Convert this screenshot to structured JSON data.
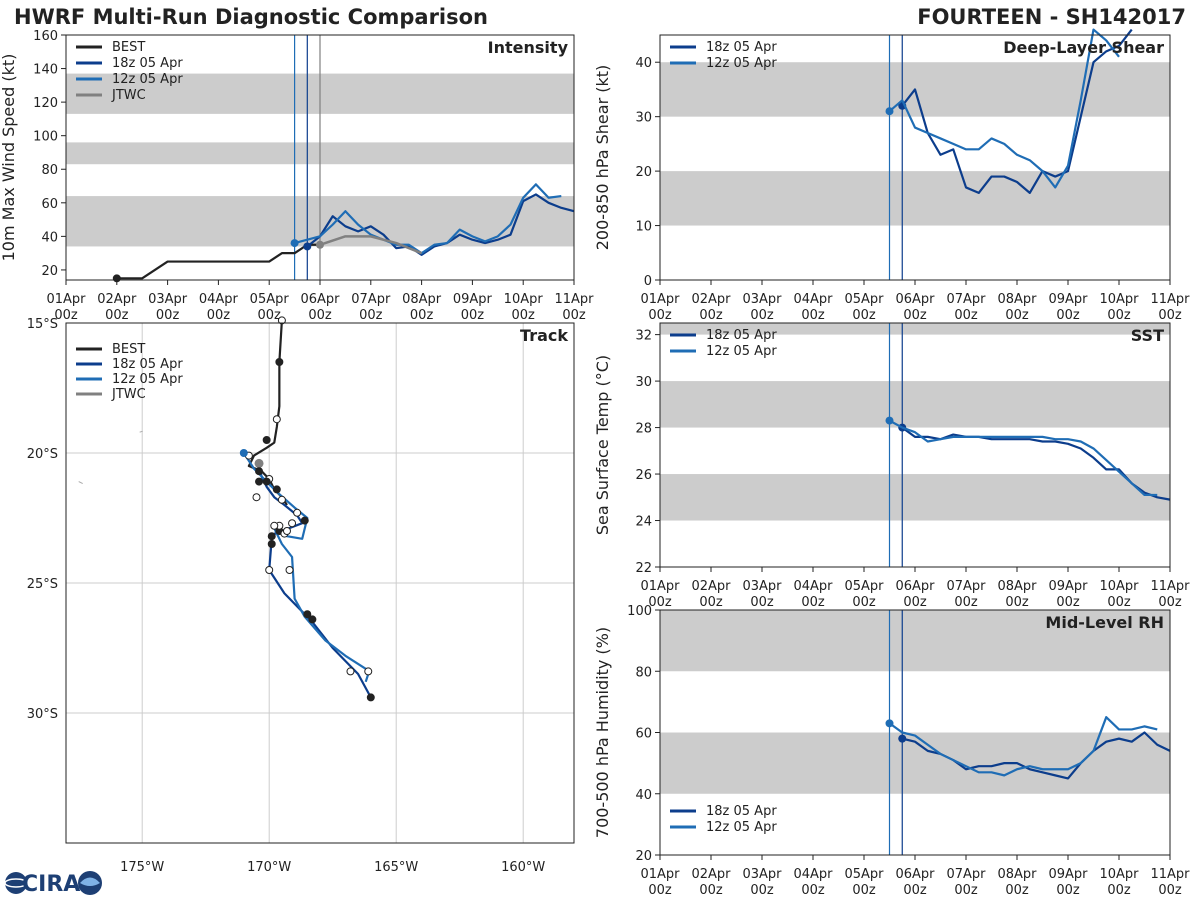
{
  "header": {
    "left_title": "HWRF Multi-Run Diagnostic Comparison",
    "right_title": "FOURTEEN - SH142017"
  },
  "logo": {
    "text": "CIRA",
    "icon": "cira-logo-icon"
  },
  "colors": {
    "best": "#222222",
    "run18": "#0c3d8c",
    "run12": "#1f6db5",
    "jtwc": "#808080",
    "band": "#cccccc",
    "grid": "#cccccc"
  },
  "chart_data": [
    {
      "id": "intensity",
      "type": "line",
      "title": "Intensity",
      "ylabel": "10m Max Wind Speed (kt)",
      "xlim": [
        0,
        10
      ],
      "ylim": [
        14,
        160
      ],
      "xticks": [
        {
          "v": 0,
          "l1": "01Apr",
          "l2": "00z"
        },
        {
          "v": 1,
          "l1": "02Apr",
          "l2": "00z"
        },
        {
          "v": 2,
          "l1": "03Apr",
          "l2": "00z"
        },
        {
          "v": 3,
          "l1": "04Apr",
          "l2": "00z"
        },
        {
          "v": 4,
          "l1": "05Apr",
          "l2": "00z"
        },
        {
          "v": 5,
          "l1": "06Apr",
          "l2": "00z"
        },
        {
          "v": 6,
          "l1": "07Apr",
          "l2": "00z"
        },
        {
          "v": 7,
          "l1": "08Apr",
          "l2": "00z"
        },
        {
          "v": 8,
          "l1": "09Apr",
          "l2": "00z"
        },
        {
          "v": 9,
          "l1": "10Apr",
          "l2": "00z"
        },
        {
          "v": 10,
          "l1": "11Apr",
          "l2": "00z"
        }
      ],
      "yticks": [
        20,
        40,
        60,
        80,
        100,
        120,
        140,
        160
      ],
      "bands": [
        [
          34,
          64
        ],
        [
          83,
          96
        ],
        [
          113,
          137
        ]
      ],
      "vlines": [
        {
          "x": 4.5,
          "series": "run12"
        },
        {
          "x": 4.75,
          "series": "run18"
        },
        {
          "x": 5.0,
          "series": "jtwc"
        }
      ],
      "legend": [
        {
          "label": "BEST",
          "series": "best"
        },
        {
          "label": "18z 05 Apr",
          "series": "run18"
        },
        {
          "label": "12z 05 Apr",
          "series": "run12"
        },
        {
          "label": "JTWC",
          "series": "jtwc"
        }
      ],
      "series": [
        {
          "name": "BEST",
          "key": "best",
          "x": [
            1,
            1.25,
            1.5,
            1.75,
            2,
            2.25,
            2.5,
            2.75,
            3,
            3.25,
            3.5,
            3.75,
            4,
            4.25,
            4.5,
            4.75,
            5
          ],
          "y": [
            15,
            15,
            15,
            20,
            25,
            25,
            25,
            25,
            25,
            25,
            25,
            25,
            25,
            30,
            30,
            35,
            35
          ]
        },
        {
          "name": "18z 05 Apr",
          "key": "run18",
          "x": [
            4.75,
            5,
            5.25,
            5.5,
            5.75,
            6,
            6.25,
            6.5,
            6.75,
            7,
            7.25,
            7.5,
            7.75,
            8,
            8.25,
            8.5,
            8.75,
            9,
            9.25,
            9.5,
            9.75,
            10
          ],
          "y": [
            34,
            40,
            52,
            46,
            43,
            46,
            41,
            33,
            34,
            29,
            34,
            36,
            41,
            38,
            36,
            38,
            41,
            61,
            65,
            60,
            57,
            55
          ]
        },
        {
          "name": "12z 05 Apr",
          "key": "run12",
          "x": [
            4.5,
            4.75,
            5,
            5.25,
            5.5,
            5.75,
            6,
            6.25,
            6.5,
            6.75,
            7,
            7.25,
            7.5,
            7.75,
            8,
            8.25,
            8.5,
            8.75,
            9,
            9.25,
            9.5,
            9.75
          ],
          "y": [
            36,
            38,
            40,
            47,
            55,
            47,
            41,
            38,
            35,
            35,
            30,
            35,
            36,
            44,
            40,
            37,
            40,
            47,
            63,
            71,
            63,
            64
          ]
        },
        {
          "name": "JTWC",
          "key": "jtwc",
          "x": [
            5,
            5.5,
            6,
            6.5,
            7
          ],
          "y": [
            35,
            40,
            40,
            36,
            30
          ]
        }
      ]
    },
    {
      "id": "shear",
      "type": "line",
      "title": "Deep-Layer Shear",
      "ylabel": "200-850 hPa Shear (kt)",
      "xlim": [
        0,
        10
      ],
      "ylim": [
        0,
        45
      ],
      "yticks": [
        0,
        10,
        20,
        30,
        40
      ],
      "bands": [
        [
          10,
          20
        ],
        [
          30,
          40
        ]
      ],
      "vlines": [
        {
          "x": 4.5,
          "series": "run12"
        },
        {
          "x": 4.75,
          "series": "run18"
        }
      ],
      "legend": [
        {
          "label": "18z 05 Apr",
          "series": "run18"
        },
        {
          "label": "12z 05 Apr",
          "series": "run12"
        }
      ],
      "series": [
        {
          "name": "18z 05 Apr",
          "key": "run18",
          "x": [
            4.75,
            5,
            5.25,
            5.5,
            5.75,
            6,
            6.25,
            6.5,
            6.75,
            7,
            7.25,
            7.5,
            7.75,
            8,
            8.25,
            8.5,
            8.75,
            9,
            9.25
          ],
          "y": [
            32,
            35,
            27,
            23,
            24,
            17,
            16,
            19,
            19,
            18,
            16,
            20,
            19,
            20,
            30,
            40,
            42,
            43,
            46
          ]
        },
        {
          "name": "12z 05 Apr",
          "key": "run12",
          "x": [
            4.5,
            4.75,
            5,
            5.25,
            5.5,
            5.75,
            6,
            6.25,
            6.5,
            6.75,
            7,
            7.25,
            7.5,
            7.75,
            8,
            8.25,
            8.5,
            8.75,
            9
          ],
          "y": [
            31,
            33,
            28,
            27,
            26,
            25,
            24,
            24,
            26,
            25,
            23,
            22,
            20,
            17,
            21,
            33,
            46,
            44,
            41
          ]
        }
      ]
    },
    {
      "id": "sst",
      "type": "line",
      "title": "SST",
      "ylabel": "Sea Surface Temp (°C)",
      "xlim": [
        0,
        10
      ],
      "ylim": [
        22,
        32.5
      ],
      "yticks": [
        22,
        24,
        26,
        28,
        30,
        32
      ],
      "bands": [
        [
          24,
          26
        ],
        [
          28,
          30
        ],
        [
          32,
          32.5
        ]
      ],
      "vlines": [
        {
          "x": 4.5,
          "series": "run12"
        },
        {
          "x": 4.75,
          "series": "run18"
        }
      ],
      "legend": [
        {
          "label": "18z 05 Apr",
          "series": "run18"
        },
        {
          "label": "12z 05 Apr",
          "series": "run12"
        }
      ],
      "series": [
        {
          "name": "18z 05 Apr",
          "key": "run18",
          "x": [
            4.75,
            5,
            5.25,
            5.5,
            5.75,
            6,
            6.25,
            6.5,
            6.75,
            7,
            7.25,
            7.5,
            7.75,
            8,
            8.25,
            8.5,
            8.75,
            9,
            9.25,
            9.5,
            9.75,
            10
          ],
          "y": [
            28.0,
            27.6,
            27.6,
            27.5,
            27.7,
            27.6,
            27.6,
            27.5,
            27.5,
            27.5,
            27.5,
            27.4,
            27.4,
            27.3,
            27.1,
            26.7,
            26.2,
            26.2,
            25.6,
            25.2,
            25.0,
            24.9
          ]
        },
        {
          "name": "12z 05 Apr",
          "key": "run12",
          "x": [
            4.5,
            4.75,
            5,
            5.25,
            5.5,
            5.75,
            6,
            6.25,
            6.5,
            6.75,
            7,
            7.25,
            7.5,
            7.75,
            8,
            8.25,
            8.5,
            8.75,
            9,
            9.25,
            9.5,
            9.75
          ],
          "y": [
            28.3,
            28.0,
            27.8,
            27.4,
            27.5,
            27.6,
            27.6,
            27.6,
            27.6,
            27.6,
            27.6,
            27.6,
            27.6,
            27.5,
            27.5,
            27.4,
            27.1,
            26.6,
            26.1,
            25.6,
            25.1,
            25.1
          ]
        }
      ]
    },
    {
      "id": "rh",
      "type": "line",
      "title": "Mid-Level RH",
      "ylabel": "700-500 hPa Humidity (%)",
      "xlim": [
        0,
        10
      ],
      "ylim": [
        20,
        100
      ],
      "yticks": [
        20,
        40,
        60,
        80,
        100
      ],
      "bands": [
        [
          40,
          60
        ],
        [
          80,
          100
        ]
      ],
      "vlines": [
        {
          "x": 4.5,
          "series": "run12"
        },
        {
          "x": 4.75,
          "series": "run18"
        }
      ],
      "legend": [
        {
          "label": "18z 05 Apr",
          "series": "run18"
        },
        {
          "label": "12z 05 Apr",
          "series": "run12"
        }
      ],
      "series": [
        {
          "name": "18z 05 Apr",
          "key": "run18",
          "x": [
            4.75,
            5,
            5.25,
            5.5,
            5.75,
            6,
            6.25,
            6.5,
            6.75,
            7,
            7.25,
            7.5,
            7.75,
            8,
            8.25,
            8.5,
            8.75,
            9,
            9.25,
            9.5,
            9.75,
            10
          ],
          "y": [
            58,
            57,
            54,
            53,
            51,
            48,
            49,
            49,
            50,
            50,
            48,
            47,
            46,
            45,
            50,
            54,
            57,
            58,
            57,
            60,
            56,
            54
          ]
        },
        {
          "name": "12z 05 Apr",
          "key": "run12",
          "x": [
            4.5,
            4.75,
            5,
            5.25,
            5.5,
            5.75,
            6,
            6.25,
            6.5,
            6.75,
            7,
            7.25,
            7.5,
            7.75,
            8,
            8.25,
            8.5,
            8.75,
            9,
            9.25,
            9.5,
            9.75
          ],
          "y": [
            63,
            60,
            59,
            56,
            53,
            51,
            49,
            47,
            47,
            46,
            48,
            49,
            48,
            48,
            48,
            50,
            54,
            65,
            61,
            61,
            62,
            61
          ]
        }
      ]
    },
    {
      "id": "track",
      "type": "scatter",
      "title": "Track",
      "xlim": [
        -178,
        -158
      ],
      "ylim": [
        -35,
        -15
      ],
      "xticks": [
        {
          "v": -175,
          "l": "175°W"
        },
        {
          "v": -170,
          "l": "170°W"
        },
        {
          "v": -165,
          "l": "165°W"
        },
        {
          "v": -160,
          "l": "160°W"
        }
      ],
      "yticks": [
        {
          "v": -15,
          "l": "15°S"
        },
        {
          "v": -20,
          "l": "20°S"
        },
        {
          "v": -25,
          "l": "25°S"
        },
        {
          "v": -30,
          "l": "30°S"
        }
      ],
      "legend": [
        {
          "label": "BEST",
          "series": "best"
        },
        {
          "label": "18z 05 Apr",
          "series": "run18"
        },
        {
          "label": "12z 05 Apr",
          "series": "run12"
        },
        {
          "label": "JTWC",
          "series": "jtwc"
        }
      ],
      "series": [
        {
          "name": "BEST",
          "key": "best",
          "lon": [
            -169.5,
            -169.6,
            -169.6,
            -169.7,
            -169.8,
            -170.1,
            -170.6,
            -170.8,
            -170.3,
            -170.0,
            -169.8,
            -169.5,
            -169.3
          ],
          "lat": [
            -14.9,
            -16.5,
            -18.2,
            -19.0,
            -19.6,
            -19.8,
            -20.1,
            -20.5,
            -20.7,
            -21.0,
            -21.4,
            -21.7,
            -22.0
          ]
        },
        {
          "name": "18z 05 Apr",
          "key": "run18",
          "lon": [
            -170.4,
            -170.3,
            -170.1,
            -169.8,
            -169.4,
            -168.9,
            -168.7,
            -169.5,
            -169.3,
            -169.7,
            -169.9,
            -170.0,
            -169.4,
            -168.6,
            -168.3,
            -167.5,
            -166.5,
            -166.0
          ],
          "lat": [
            -20.5,
            -20.9,
            -21.3,
            -21.7,
            -22.0,
            -22.4,
            -22.7,
            -23.0,
            -23.1,
            -23.0,
            -23.3,
            -24.5,
            -25.4,
            -26.2,
            -26.5,
            -27.5,
            -28.5,
            -29.4
          ]
        },
        {
          "name": "12z 05 Apr",
          "key": "run12",
          "lon": [
            -171.0,
            -170.6,
            -170.2,
            -169.7,
            -169.0,
            -168.5,
            -168.7,
            -169.3,
            -169.8,
            -169.5,
            -169.1,
            -169.0,
            -168.6,
            -167.8,
            -167.0,
            -166.2,
            -166.1,
            -166.2
          ],
          "lat": [
            -20.0,
            -20.6,
            -21.0,
            -21.5,
            -22.1,
            -22.5,
            -23.3,
            -23.2,
            -22.9,
            -23.5,
            -24.0,
            -25.6,
            -26.3,
            -27.2,
            -27.8,
            -28.3,
            -28.5,
            -28.8
          ]
        },
        {
          "name": "JTWC",
          "key": "jtwc",
          "lon": [
            -170.5,
            -170.3
          ],
          "lat": [
            -20.4,
            -20.4
          ]
        }
      ],
      "markers": {
        "best": [
          [
            -169.5,
            -14.9
          ],
          [
            -169.6,
            -16.5
          ],
          [
            -169.7,
            -18.7
          ],
          [
            -170.1,
            -19.5
          ],
          [
            -170.8,
            -20.1
          ],
          [
            -170.4,
            -20.7
          ],
          [
            -170.0,
            -21.0
          ],
          [
            -169.7,
            -21.4
          ],
          [
            -170.5,
            -21.7
          ]
        ],
        "run18_filled": [
          [
            -170.4,
            -21.1
          ],
          [
            -170.1,
            -21.1
          ],
          [
            -168.6,
            -22.6
          ],
          [
            -169.6,
            -23.0
          ],
          [
            -169.9,
            -23.2
          ],
          [
            -169.9,
            -23.5
          ],
          [
            -168.5,
            -26.2
          ],
          [
            -168.3,
            -26.4
          ],
          [
            -166.0,
            -29.4
          ]
        ],
        "run18_open": [
          [
            -169.6,
            -22.8
          ],
          [
            -169.4,
            -23.1
          ],
          [
            -168.9,
            -22.3
          ],
          [
            -169.5,
            -21.8
          ],
          [
            -170.0,
            -24.5
          ],
          [
            -166.8,
            -28.4
          ]
        ],
        "run12_filled": [
          [
            -171.0,
            -20.0
          ]
        ],
        "run12_open": [
          [
            -169.1,
            -22.7
          ],
          [
            -169.2,
            -24.5
          ],
          [
            -166.1,
            -28.4
          ],
          [
            -169.8,
            -22.8
          ],
          [
            -169.3,
            -23.0
          ]
        ],
        "jtwc": [
          [
            -170.4,
            -20.4
          ]
        ]
      }
    }
  ]
}
